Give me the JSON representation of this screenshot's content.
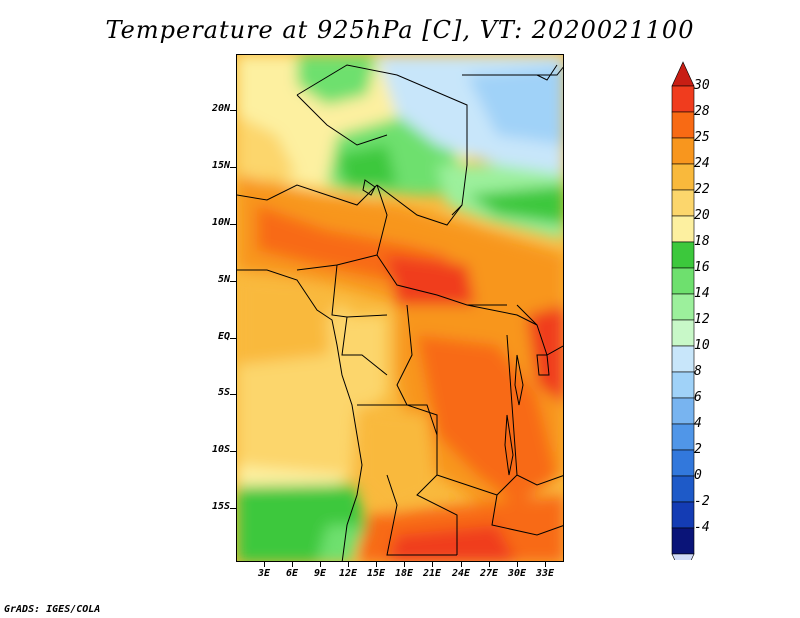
{
  "title": "Temperature at 925hPa [C], VT: 2020021100",
  "credit": "GrADS: IGES/COLA",
  "map": {
    "lat_labels": [
      "20N",
      "15N",
      "10N",
      "5N",
      "EQ",
      "5S",
      "10S",
      "15S"
    ],
    "lon_labels": [
      "3E",
      "6E",
      "9E",
      "12E",
      "15E",
      "18E",
      "21E",
      "24E",
      "27E",
      "30E",
      "33E"
    ]
  },
  "colorbar": {
    "labels": [
      "30",
      "28",
      "25",
      "24",
      "22",
      "20",
      "18",
      "16",
      "14",
      "12",
      "10",
      "8",
      "6",
      "4",
      "2",
      "0",
      "-2",
      "-4"
    ],
    "colors": [
      "#f03c1e",
      "#f86a14",
      "#f8961e",
      "#f9b93c",
      "#fcd66c",
      "#fdf0a0",
      "#3cc83c",
      "#6ee06e",
      "#9cf09c",
      "#c8f8c8",
      "#c8e6fa",
      "#a0d2f8",
      "#78b4f0",
      "#5096e8",
      "#3278dc",
      "#1e5ac8",
      "#143cb4",
      "#0a1478"
    ],
    "top_arrow_color": "#c81e14",
    "bottom_arrow_color": "#d2dcf8"
  }
}
